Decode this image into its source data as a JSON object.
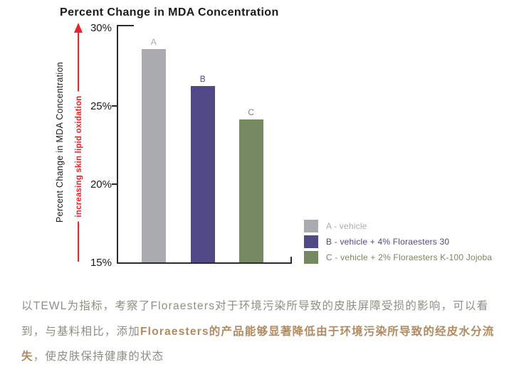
{
  "chart": {
    "title": "Percent Change in MDA Concentration",
    "y_axis_title": "Percent Change in MDA Concentration",
    "arrow_label": "increasing skin lipid oxidation",
    "colors": {
      "red": "#e8262a",
      "axis": "#2b2b2b",
      "title_text": "#1b1b1b"
    }
  },
  "chart_data": {
    "type": "bar",
    "title": "Percent Change in MDA Concentration",
    "ylabel": "Percent Change in MDA Concentration",
    "annotation": "increasing skin lipid oxidation",
    "categories": [
      "A",
      "B",
      "C"
    ],
    "values": [
      28.7,
      26.3,
      24.2
    ],
    "bar_colors": [
      "#a9abae",
      "#4f4a87",
      "#75885f"
    ],
    "ylim": [
      15,
      30
    ],
    "ytick_labels": [
      "30%",
      "25%",
      "20%",
      "15%"
    ],
    "ytick_values": [
      30,
      25,
      20,
      15
    ],
    "grid": false,
    "legend_position": "lower right",
    "legend": [
      {
        "label": "A - vehicle",
        "color": "#a9abae"
      },
      {
        "label": "B - vehicle + 4% Floraesters 30",
        "color": "#4f4a87"
      },
      {
        "label": "C - vehicle + 2% Floraesters K-100 Jojoba",
        "color": "#75885f"
      }
    ]
  },
  "description": {
    "regular_color": "#8d8f82",
    "bold_color": "#b08a60",
    "lines": [
      {
        "segments": [
          {
            "text": "以TEWL为指标，考察了Floraesters对于环境污染所导致的皮肤屏障受损的影响，可以看",
            "bold": false
          }
        ]
      },
      {
        "segments": [
          {
            "text": "到，与基料相比，添加",
            "bold": false
          },
          {
            "text": "Floraesters的产品能够显著降低由于环境污染所导致的经皮水分流",
            "bold": true
          }
        ]
      },
      {
        "segments": [
          {
            "text": "失",
            "bold": true
          },
          {
            "text": "，使皮肤保持健康的状态",
            "bold": false
          }
        ]
      }
    ]
  }
}
